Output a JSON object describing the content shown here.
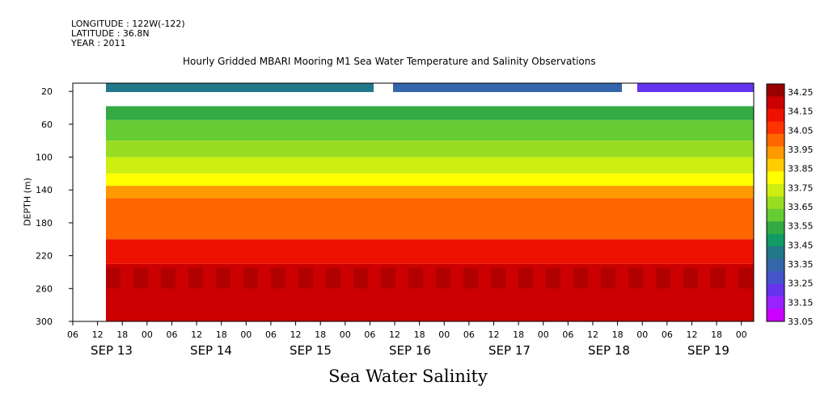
{
  "metadata": {
    "longitude": "LONGITUDE : 122W(-122)",
    "latitude": "LATITUDE : 36.8N",
    "year": "YEAR : 2011"
  },
  "chart_data": {
    "type": "heatmap",
    "title": "Hourly Gridded MBARI Mooring M1 Sea Water Temperature and Salinity Observations",
    "bottom_title": "Sea Water Salinity",
    "ylabel": "DEPTH (m)",
    "ylim": [
      300,
      10
    ],
    "y_ticks": [
      20,
      60,
      100,
      140,
      180,
      220,
      260,
      300
    ],
    "x_hour_ticks": [
      "06",
      "12",
      "18",
      "00",
      "06",
      "12",
      "18",
      "00",
      "06",
      "12",
      "18",
      "00",
      "06",
      "12",
      "18",
      "00",
      "06",
      "12",
      "18",
      "00",
      "06",
      "12",
      "18",
      "00",
      "06",
      "12",
      "18",
      "00",
      "06",
      "12",
      "18",
      "00"
    ],
    "x_day_ticks": [
      "SEP 13",
      "SEP 14",
      "SEP 15",
      "SEP 16",
      "SEP 17",
      "SEP 18",
      "SEP 19"
    ],
    "colorbar": {
      "levels": [
        34.25,
        34.15,
        34.05,
        33.95,
        33.85,
        33.75,
        33.65,
        33.55,
        33.45,
        33.35,
        33.25,
        33.15,
        33.05
      ],
      "colors": [
        "#990000",
        "#cc0000",
        "#ee1100",
        "#ff3300",
        "#ff6600",
        "#ff9900",
        "#ffcc00",
        "#ffff00",
        "#ccee11",
        "#99dd22",
        "#66cc33",
        "#33aa44",
        "#119966",
        "#227788",
        "#3366aa",
        "#4455cc",
        "#6633ee",
        "#9922ff",
        "#cc00ff"
      ]
    },
    "profiles_by_depth": [
      {
        "depth": 10,
        "salinity": 33.35
      },
      {
        "depth": 50,
        "salinity": 33.5
      },
      {
        "depth": 80,
        "salinity": 33.62
      },
      {
        "depth": 110,
        "salinity": 33.8
      },
      {
        "depth": 140,
        "salinity": 33.95
      },
      {
        "depth": 180,
        "salinity": 34.02
      },
      {
        "depth": 220,
        "salinity": 34.13
      },
      {
        "depth": 260,
        "salinity": 34.22
      },
      {
        "depth": 300,
        "salinity": 34.2
      }
    ]
  }
}
